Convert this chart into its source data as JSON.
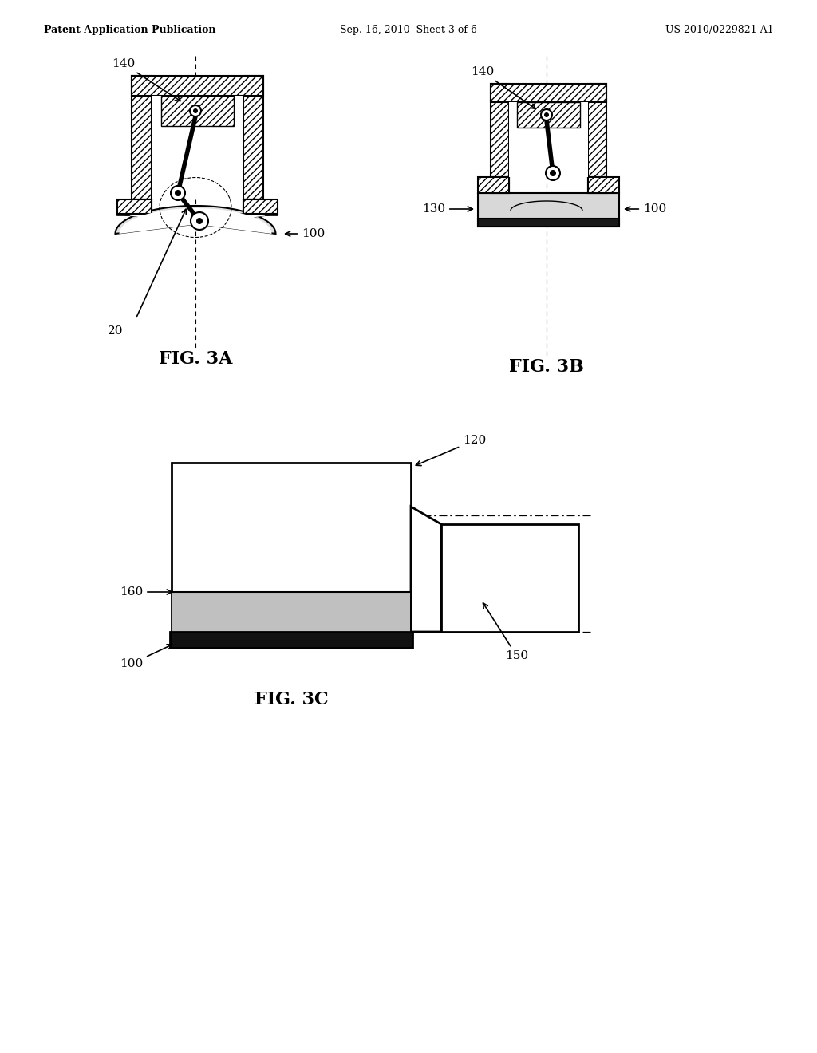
{
  "bg_color": "#ffffff",
  "header_left": "Patent Application Publication",
  "header_center": "Sep. 16, 2010  Sheet 3 of 6",
  "header_right": "US 2010/0229821 A1",
  "header_fontsize": 9,
  "fig3a_label": "FIG. 3A",
  "fig3b_label": "FIG. 3B",
  "fig3c_label": "FIG. 3C",
  "label_fontsize": 14,
  "annotation_fontsize": 11,
  "line_color": "#000000"
}
